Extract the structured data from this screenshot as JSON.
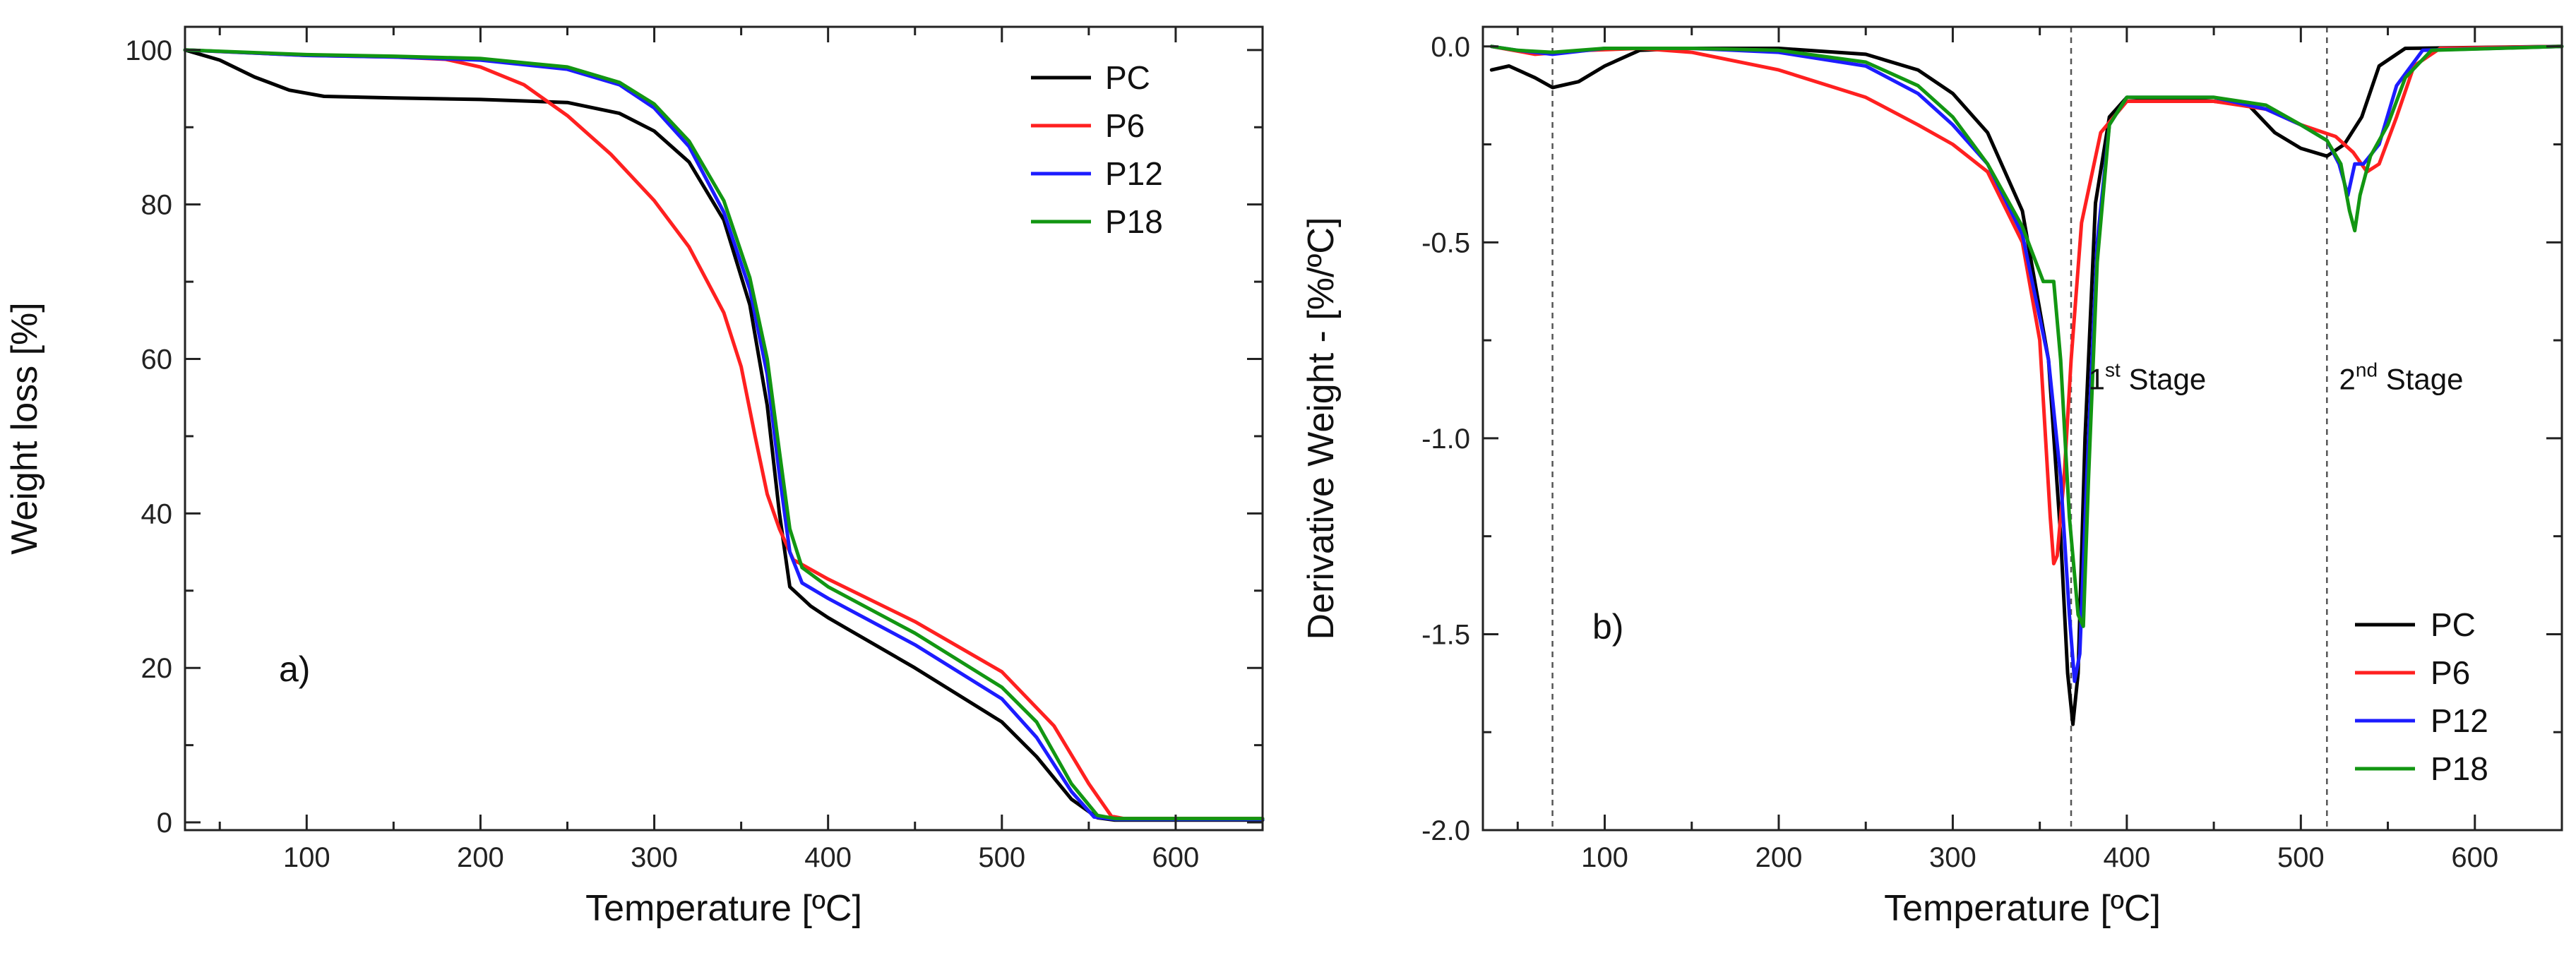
{
  "chart_data": [
    {
      "type": "line",
      "panel": "a)",
      "title": "",
      "xlabel": "Temperature [ºC]",
      "ylabel": "Weight loss [%]",
      "xlim": [
        30,
        650
      ],
      "ylim": [
        -1,
        103
      ],
      "xticks": [
        100,
        200,
        300,
        400,
        500,
        600
      ],
      "xtick_labels": [
        "100",
        "200",
        "300",
        "400",
        "500",
        "600"
      ],
      "yticks": [
        0,
        20,
        40,
        60,
        80,
        100
      ],
      "ytick_labels": [
        "0",
        "20",
        "40",
        "60",
        "80",
        "100"
      ],
      "legend_position": "top-right",
      "series": [
        {
          "name": "PC",
          "color": "#000000",
          "points": [
            [
              30,
              100
            ],
            [
              50,
              98.7
            ],
            [
              70,
              96.5
            ],
            [
              90,
              94.8
            ],
            [
              110,
              94
            ],
            [
              150,
              93.8
            ],
            [
              200,
              93.6
            ],
            [
              250,
              93.2
            ],
            [
              280,
              91.8
            ],
            [
              300,
              89.5
            ],
            [
              320,
              85.5
            ],
            [
              340,
              78
            ],
            [
              355,
              67
            ],
            [
              365,
              54
            ],
            [
              372,
              40
            ],
            [
              378,
              30.5
            ],
            [
              390,
              28
            ],
            [
              400,
              26.5
            ],
            [
              450,
              20
            ],
            [
              500,
              13
            ],
            [
              520,
              8.5
            ],
            [
              540,
              3
            ],
            [
              555,
              0.6
            ],
            [
              565,
              0.3
            ],
            [
              650,
              0.3
            ]
          ]
        },
        {
          "name": "P6",
          "color": "#ff2020",
          "points": [
            [
              30,
              100
            ],
            [
              100,
              99.3
            ],
            [
              150,
              99.1
            ],
            [
              180,
              98.8
            ],
            [
              200,
              97.8
            ],
            [
              225,
              95.5
            ],
            [
              250,
              91.5
            ],
            [
              275,
              86.5
            ],
            [
              300,
              80.5
            ],
            [
              320,
              74.5
            ],
            [
              340,
              66
            ],
            [
              350,
              59
            ],
            [
              358,
              50
            ],
            [
              365,
              42.5
            ],
            [
              372,
              38
            ],
            [
              380,
              34
            ],
            [
              400,
              31.5
            ],
            [
              450,
              26
            ],
            [
              500,
              19.5
            ],
            [
              530,
              12.5
            ],
            [
              550,
              5
            ],
            [
              563,
              0.8
            ],
            [
              570,
              0.5
            ],
            [
              650,
              0.5
            ]
          ]
        },
        {
          "name": "P12",
          "color": "#1c1cff",
          "points": [
            [
              30,
              100
            ],
            [
              100,
              99.3
            ],
            [
              150,
              99.1
            ],
            [
              200,
              98.7
            ],
            [
              250,
              97.5
            ],
            [
              280,
              95.5
            ],
            [
              300,
              92.5
            ],
            [
              320,
              87.5
            ],
            [
              340,
              79
            ],
            [
              355,
              69
            ],
            [
              365,
              58
            ],
            [
              372,
              45
            ],
            [
              378,
              35
            ],
            [
              385,
              31
            ],
            [
              400,
              29
            ],
            [
              450,
              23
            ],
            [
              500,
              16
            ],
            [
              520,
              11
            ],
            [
              540,
              4
            ],
            [
              553,
              0.7
            ],
            [
              565,
              0.4
            ],
            [
              650,
              0.4
            ]
          ]
        },
        {
          "name": "P18",
          "color": "#129612",
          "points": [
            [
              30,
              100
            ],
            [
              100,
              99.4
            ],
            [
              150,
              99.2
            ],
            [
              200,
              98.9
            ],
            [
              250,
              97.8
            ],
            [
              280,
              95.8
            ],
            [
              300,
              93
            ],
            [
              320,
              88.2
            ],
            [
              340,
              80.5
            ],
            [
              355,
              70.5
            ],
            [
              365,
              60
            ],
            [
              372,
              48
            ],
            [
              378,
              38
            ],
            [
              385,
              33
            ],
            [
              400,
              30.5
            ],
            [
              450,
              24.5
            ],
            [
              500,
              17.5
            ],
            [
              520,
              13
            ],
            [
              540,
              5
            ],
            [
              555,
              0.9
            ],
            [
              565,
              0.5
            ],
            [
              650,
              0.5
            ]
          ]
        }
      ]
    },
    {
      "type": "line",
      "panel": "b)",
      "title": "",
      "xlabel": "Temperature [ºC]",
      "ylabel": "Derivative Weight - [%/ºC]",
      "xlim": [
        30,
        650
      ],
      "ylim": [
        -2.0,
        0.05
      ],
      "xticks": [
        100,
        200,
        300,
        400,
        500,
        600
      ],
      "xtick_labels": [
        "100",
        "200",
        "300",
        "400",
        "500",
        "600"
      ],
      "yticks": [
        0.0,
        -0.5,
        -1.0,
        -1.5,
        -2.0
      ],
      "ytick_labels": [
        "0.0",
        "-0.5",
        "-1.0",
        "-1.5",
        "-2.0"
      ],
      "legend_position": "bottom-right",
      "reference_lines_x": [
        70,
        368,
        515
      ],
      "annotations": [
        {
          "base": "1",
          "sup": "st",
          "rest": " Stage",
          "x": 378,
          "y": -0.85
        },
        {
          "base": "2",
          "sup": "nd",
          "rest": " Stage",
          "x": 522,
          "y": -0.85
        }
      ],
      "series": [
        {
          "name": "PC",
          "color": "#000000",
          "points": [
            [
              35,
              -0.06
            ],
            [
              45,
              -0.05
            ],
            [
              60,
              -0.08
            ],
            [
              70,
              -0.105
            ],
            [
              85,
              -0.09
            ],
            [
              100,
              -0.05
            ],
            [
              120,
              -0.01
            ],
            [
              150,
              -0.005
            ],
            [
              200,
              -0.005
            ],
            [
              250,
              -0.02
            ],
            [
              280,
              -0.06
            ],
            [
              300,
              -0.12
            ],
            [
              320,
              -0.22
            ],
            [
              340,
              -0.42
            ],
            [
              355,
              -0.8
            ],
            [
              362,
              -1.25
            ],
            [
              366,
              -1.6
            ],
            [
              369,
              -1.73
            ],
            [
              372,
              -1.6
            ],
            [
              376,
              -1.0
            ],
            [
              382,
              -0.4
            ],
            [
              390,
              -0.18
            ],
            [
              400,
              -0.13
            ],
            [
              450,
              -0.14
            ],
            [
              470,
              -0.15
            ],
            [
              485,
              -0.22
            ],
            [
              500,
              -0.26
            ],
            [
              515,
              -0.28
            ],
            [
              525,
              -0.25
            ],
            [
              535,
              -0.18
            ],
            [
              545,
              -0.05
            ],
            [
              560,
              -0.005
            ],
            [
              650,
              0
            ]
          ]
        },
        {
          "name": "P6",
          "color": "#ff2020",
          "points": [
            [
              35,
              0
            ],
            [
              60,
              -0.02
            ],
            [
              90,
              -0.01
            ],
            [
              120,
              -0.005
            ],
            [
              150,
              -0.015
            ],
            [
              200,
              -0.06
            ],
            [
              250,
              -0.13
            ],
            [
              280,
              -0.2
            ],
            [
              300,
              -0.25
            ],
            [
              320,
              -0.32
            ],
            [
              340,
              -0.5
            ],
            [
              350,
              -0.75
            ],
            [
              356,
              -1.2
            ],
            [
              358,
              -1.32
            ],
            [
              360,
              -1.3
            ],
            [
              364,
              -1.1
            ],
            [
              368,
              -0.8
            ],
            [
              374,
              -0.45
            ],
            [
              385,
              -0.22
            ],
            [
              400,
              -0.14
            ],
            [
              450,
              -0.14
            ],
            [
              480,
              -0.16
            ],
            [
              500,
              -0.2
            ],
            [
              520,
              -0.23
            ],
            [
              530,
              -0.27
            ],
            [
              538,
              -0.32
            ],
            [
              545,
              -0.3
            ],
            [
              555,
              -0.18
            ],
            [
              565,
              -0.05
            ],
            [
              580,
              -0.005
            ],
            [
              650,
              0
            ]
          ]
        },
        {
          "name": "P12",
          "color": "#1c1cff",
          "points": [
            [
              35,
              0
            ],
            [
              50,
              -0.01
            ],
            [
              70,
              -0.02
            ],
            [
              100,
              -0.005
            ],
            [
              150,
              -0.005
            ],
            [
              200,
              -0.015
            ],
            [
              250,
              -0.05
            ],
            [
              280,
              -0.12
            ],
            [
              300,
              -0.2
            ],
            [
              320,
              -0.3
            ],
            [
              340,
              -0.48
            ],
            [
              355,
              -0.8
            ],
            [
              362,
              -1.1
            ],
            [
              367,
              -1.45
            ],
            [
              370,
              -1.62
            ],
            [
              373,
              -1.55
            ],
            [
              377,
              -1.1
            ],
            [
              383,
              -0.5
            ],
            [
              390,
              -0.2
            ],
            [
              400,
              -0.13
            ],
            [
              450,
              -0.13
            ],
            [
              480,
              -0.16
            ],
            [
              500,
              -0.2
            ],
            [
              515,
              -0.24
            ],
            [
              522,
              -0.3
            ],
            [
              527,
              -0.38
            ],
            [
              531,
              -0.3
            ],
            [
              536,
              -0.3
            ],
            [
              545,
              -0.25
            ],
            [
              555,
              -0.1
            ],
            [
              570,
              -0.01
            ],
            [
              650,
              0
            ]
          ]
        },
        {
          "name": "P18",
          "color": "#129612",
          "points": [
            [
              35,
              0
            ],
            [
              50,
              -0.01
            ],
            [
              70,
              -0.015
            ],
            [
              100,
              -0.005
            ],
            [
              150,
              -0.005
            ],
            [
              200,
              -0.01
            ],
            [
              250,
              -0.04
            ],
            [
              280,
              -0.1
            ],
            [
              300,
              -0.18
            ],
            [
              320,
              -0.3
            ],
            [
              340,
              -0.46
            ],
            [
              352,
              -0.6
            ],
            [
              358,
              -0.6
            ],
            [
              362,
              -0.8
            ],
            [
              367,
              -1.2
            ],
            [
              372,
              -1.45
            ],
            [
              375,
              -1.48
            ],
            [
              378,
              -1.1
            ],
            [
              383,
              -0.55
            ],
            [
              390,
              -0.2
            ],
            [
              400,
              -0.13
            ],
            [
              450,
              -0.13
            ],
            [
              480,
              -0.15
            ],
            [
              500,
              -0.2
            ],
            [
              515,
              -0.24
            ],
            [
              523,
              -0.3
            ],
            [
              528,
              -0.42
            ],
            [
              531,
              -0.47
            ],
            [
              534,
              -0.38
            ],
            [
              540,
              -0.28
            ],
            [
              550,
              -0.2
            ],
            [
              560,
              -0.08
            ],
            [
              575,
              -0.01
            ],
            [
              650,
              0
            ]
          ]
        }
      ]
    }
  ]
}
